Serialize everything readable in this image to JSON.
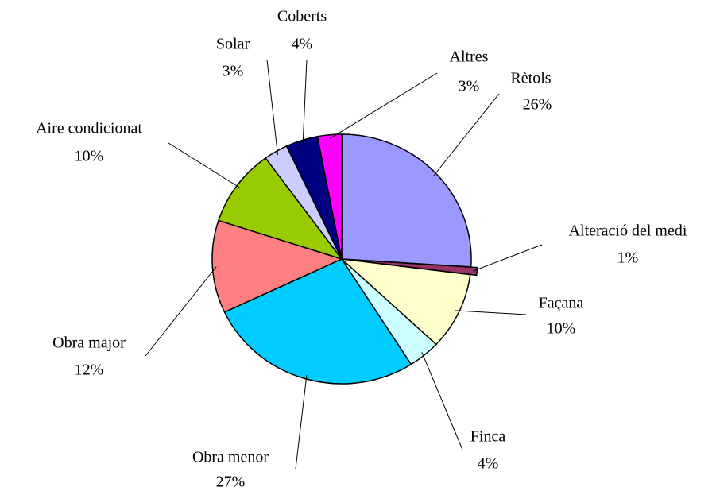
{
  "chart_data": {
    "type": "pie",
    "categories": [
      "Rètols",
      "Alteració del medi",
      "Façana",
      "Finca",
      "Obra menor",
      "Obra major",
      "Aire condicionat",
      "Solar",
      "Coberts",
      "Altres"
    ],
    "values": [
      26,
      1,
      10,
      4,
      27,
      12,
      10,
      3,
      4,
      3
    ],
    "value_labels": [
      "26%",
      "1%",
      "10%",
      "4%",
      "27%",
      "12%",
      "10%",
      "3%",
      "4%",
      "3%"
    ],
    "colors": [
      "#9999ff",
      "#993366",
      "#ffffcc",
      "#ccffff",
      "#00ccff",
      "#ff8080",
      "#99cc00",
      "#ccccff",
      "#000080",
      "#ff00ff"
    ],
    "exploded": [
      "Alteració del medi"
    ]
  }
}
